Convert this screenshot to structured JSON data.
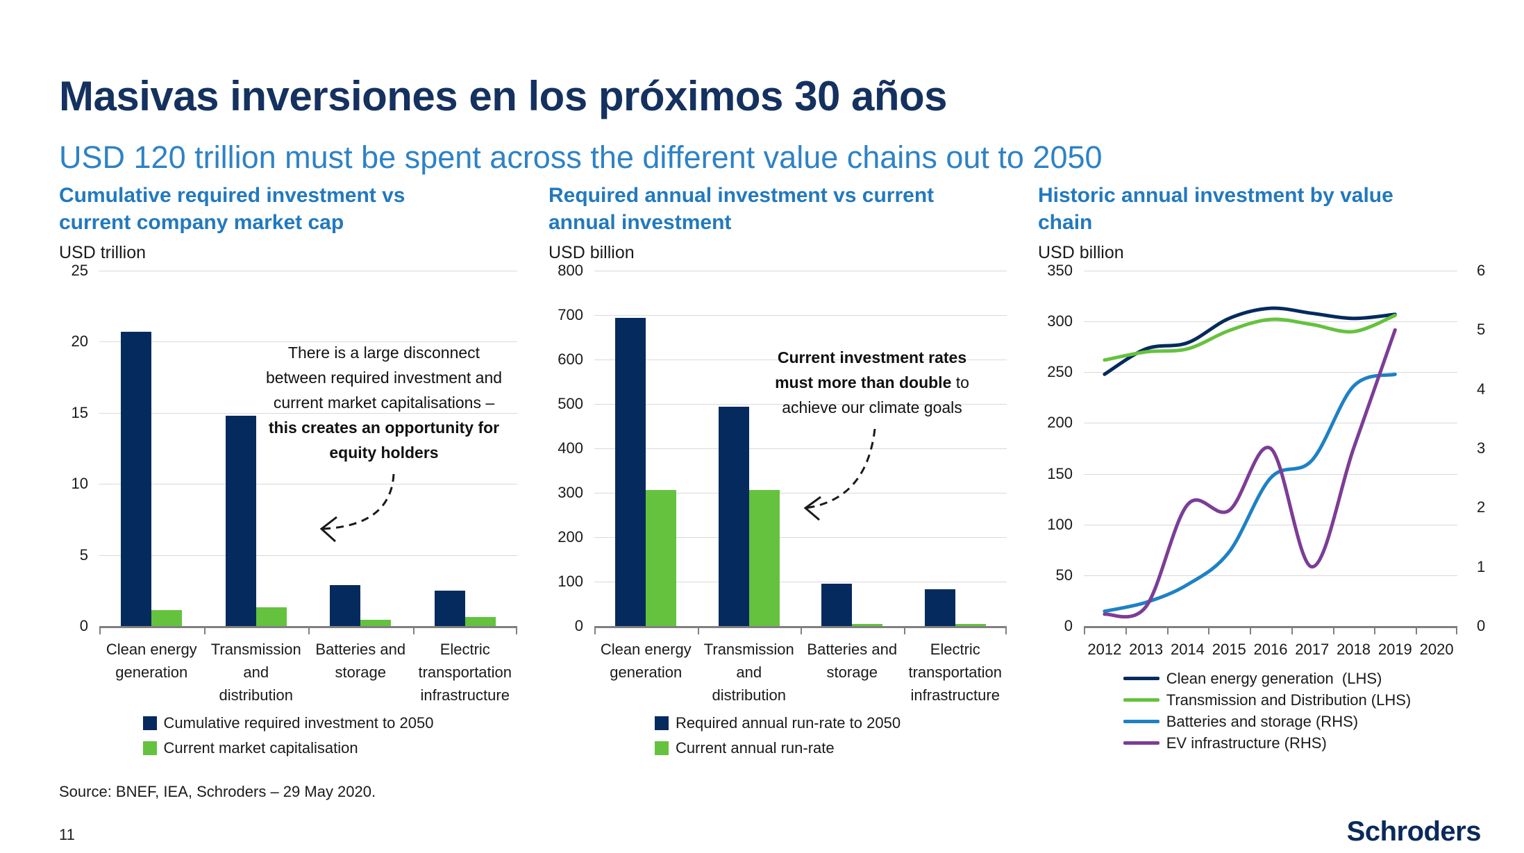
{
  "slide": {
    "title": "Masivas inversiones en los próximos 30 años",
    "subtitle": "USD 120 trillion must be spent across the different value chains out to 2050",
    "source": "Source: BNEF, IEA, Schroders – 29 May 2020.",
    "page_number": "11",
    "logo_text": "Schroders"
  },
  "colors": {
    "navy": "#052A5E",
    "green": "#65C23E",
    "blue": "#1E81C4",
    "purple": "#7C3D96",
    "title_navy": "#14315F",
    "accent_blue": "#2279BE",
    "subtitle_blue": "#2E82C5",
    "grid": "#D9D9D9",
    "axis": "#7F7F7F",
    "text": "#1A1A1A"
  },
  "chart_data": [
    {
      "type": "bar",
      "title": "Cumulative required investment vs\ncurrent company market cap",
      "unit": "USD trillion",
      "categories": [
        "Clean energy\ngeneration",
        "Transmission\nand\ndistribution",
        "Batteries and\nstorage",
        "Electric\ntransportation\ninfrastructure"
      ],
      "ylim": [
        0,
        25
      ],
      "yticks": [
        0,
        5,
        10,
        15,
        20,
        25
      ],
      "grid": true,
      "legend_position": "bottom",
      "series": [
        {
          "name": "Cumulative required investment to 2050",
          "color_key": "navy",
          "values": [
            20.7,
            14.8,
            2.9,
            2.5
          ]
        },
        {
          "name": "Current market capitalisation",
          "color_key": "green",
          "values": [
            1.1,
            1.3,
            0.45,
            0.65
          ]
        }
      ],
      "annotation": {
        "lines": [
          [
            {
              "t": "There is a large disconnect",
              "b": false
            }
          ],
          [
            {
              "t": "between required investment and",
              "b": false
            }
          ],
          [
            {
              "t": "current market capitalisations –",
              "b": false
            }
          ],
          [
            {
              "t": "this creates an opportunity for",
              "b": true
            }
          ],
          [
            {
              "t": "equity holders",
              "b": true
            }
          ]
        ]
      }
    },
    {
      "type": "bar",
      "title": "Required annual investment vs current\nannual investment",
      "unit": "USD billion",
      "categories": [
        "Clean energy\ngeneration",
        "Transmission\nand\ndistribution",
        "Batteries and\nstorage",
        "Electric\ntransportation\ninfrastructure"
      ],
      "ylim": [
        0,
        800
      ],
      "yticks": [
        0,
        100,
        200,
        300,
        400,
        500,
        600,
        700,
        800
      ],
      "grid": true,
      "legend_position": "bottom",
      "series": [
        {
          "name": "Required annual run-rate to 2050",
          "color_key": "navy",
          "values": [
            693,
            493,
            96,
            83
          ]
        },
        {
          "name": "Current annual run-rate",
          "color_key": "green",
          "values": [
            307,
            307,
            4,
            5
          ]
        }
      ],
      "annotation": {
        "lines": [
          [
            {
              "t": "Current investment rates",
              "b": true
            }
          ],
          [
            {
              "t": "must more than double",
              "b": true
            },
            {
              "t": " to",
              "b": false
            }
          ],
          [
            {
              "t": "achieve our climate goals",
              "b": false
            }
          ]
        ]
      }
    },
    {
      "type": "line",
      "title": "Historic annual investment by value\nchain",
      "unit": "USD billion",
      "x_categories": [
        "2012",
        "2013",
        "2014",
        "2015",
        "2016",
        "2017",
        "2018",
        "2019",
        "2020"
      ],
      "ylim_left": [
        0,
        350
      ],
      "yticks_left": [
        0,
        50,
        100,
        150,
        200,
        250,
        300,
        350
      ],
      "ylim_right": [
        0,
        6
      ],
      "yticks_right": [
        0,
        1,
        2,
        3,
        4,
        5,
        6
      ],
      "grid": true,
      "legend_position": "bottom",
      "series": [
        {
          "name": "Clean energy generation  (LHS)",
          "axis": "left",
          "color_key": "navy",
          "x": [
            "2012",
            "2013",
            "2014",
            "2015",
            "2016",
            "2017",
            "2018",
            "2019"
          ],
          "values": [
            248,
            273,
            279,
            303,
            313,
            308,
            303,
            307
          ]
        },
        {
          "name": "Transmission and Distribution (LHS)",
          "axis": "left",
          "color_key": "green",
          "x": [
            "2012",
            "2013",
            "2014",
            "2015",
            "2016",
            "2017",
            "2018",
            "2019"
          ],
          "values": [
            262,
            270,
            273,
            291,
            302,
            297,
            290,
            306
          ]
        },
        {
          "name": "Batteries and storage (RHS)",
          "axis": "right",
          "color_key": "blue",
          "x": [
            "2012",
            "2013",
            "2014",
            "2015",
            "2016",
            "2017",
            "2018",
            "2019"
          ],
          "values": [
            0.25,
            0.4,
            0.7,
            1.25,
            2.5,
            2.8,
            4.05,
            4.25
          ]
        },
        {
          "name": "EV infrastructure (RHS)",
          "axis": "right",
          "color_key": "purple",
          "x": [
            "2012",
            "2013",
            "2014",
            "2015",
            "2016",
            "2017",
            "2018",
            "2019"
          ],
          "values": [
            0.2,
            0.33,
            2.05,
            1.95,
            3.0,
            1.0,
            3.0,
            5.0
          ]
        }
      ]
    }
  ]
}
